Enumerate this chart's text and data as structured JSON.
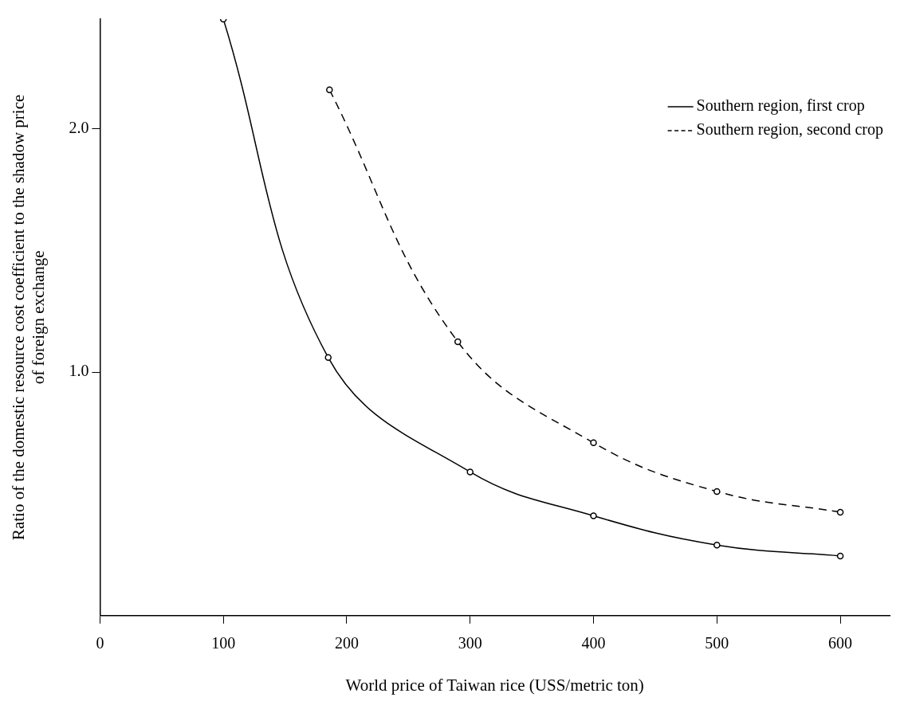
{
  "chart_data": {
    "type": "line",
    "xlabel": "World price of Taiwan rice (USS/metric ton)",
    "ylabel": "Ratio of the domestic resource cost coefficient to the shadow price\nof foreign exchange",
    "xlim": [
      0,
      640
    ],
    "xticks": [
      0,
      100,
      200,
      300,
      400,
      500,
      600
    ],
    "ylim": [
      0,
      2.45
    ],
    "yticks": [
      {
        "value": 1,
        "label": "1.0"
      },
      {
        "value": 2,
        "label": "2.0"
      }
    ],
    "grid": false,
    "legend": "top right",
    "marker": "circle",
    "series": [
      {
        "name": "Southern region, first crop",
        "color": "#000000",
        "line_style": "solid",
        "x": [
          100,
          185,
          300,
          400,
          500,
          600
        ],
        "values": [
          2.45,
          1.06,
          0.59,
          0.41,
          0.29,
          0.245
        ]
      },
      {
        "name": "Southern region, second crop",
        "color": "#000000",
        "line_style": "dashed",
        "x": [
          186,
          290,
          400,
          500,
          600
        ],
        "values": [
          2.16,
          1.125,
          0.71,
          0.51,
          0.425
        ]
      }
    ]
  }
}
